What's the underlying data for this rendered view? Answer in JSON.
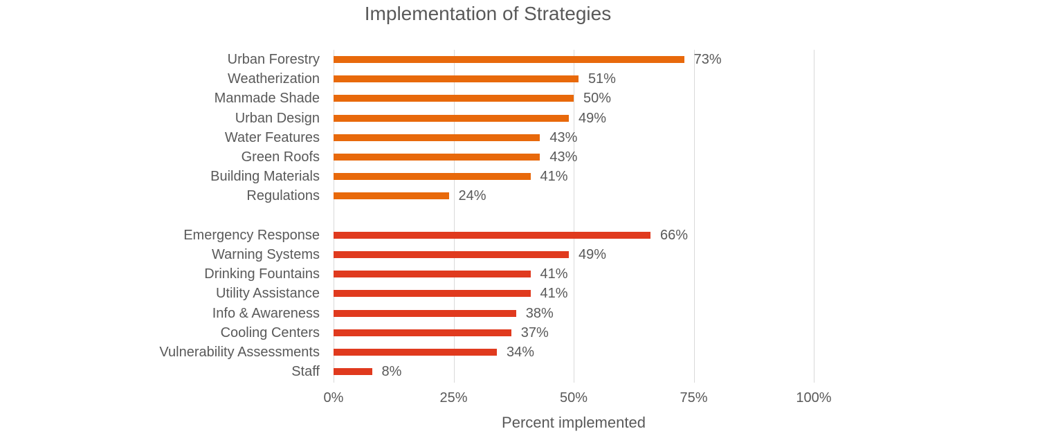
{
  "chart_data": {
    "type": "bar",
    "orientation": "horizontal",
    "title": "Implementation of Strategies",
    "xlabel": "Percent implemented",
    "ylabel": "",
    "xlim": [
      0,
      100
    ],
    "x_ticks": [
      "0%",
      "25%",
      "50%",
      "75%",
      "100%"
    ],
    "grid": true,
    "legend": null,
    "groups": [
      {
        "color": "#E8690B",
        "categories": [
          "Urban Forestry",
          "Weatherization",
          "Manmade Shade",
          "Urban Design",
          "Water Features",
          "Green Roofs",
          "Building Materials",
          "Regulations"
        ],
        "values": [
          73,
          51,
          50,
          49,
          43,
          43,
          41,
          24
        ],
        "labels": [
          "73%",
          "51%",
          "50%",
          "49%",
          "43%",
          "43%",
          "41%",
          "24%"
        ]
      },
      {
        "color": "#E03A1E",
        "categories": [
          "Emergency Response",
          "Warning Systems",
          "Drinking Fountains",
          "Utility Assistance",
          "Info & Awareness",
          "Cooling Centers",
          "Vulnerability Assessments",
          "Staff"
        ],
        "values": [
          66,
          49,
          41,
          41,
          38,
          37,
          34,
          8
        ],
        "labels": [
          "66%",
          "49%",
          "41%",
          "41%",
          "38%",
          "37%",
          "34%",
          "8%"
        ]
      }
    ]
  }
}
